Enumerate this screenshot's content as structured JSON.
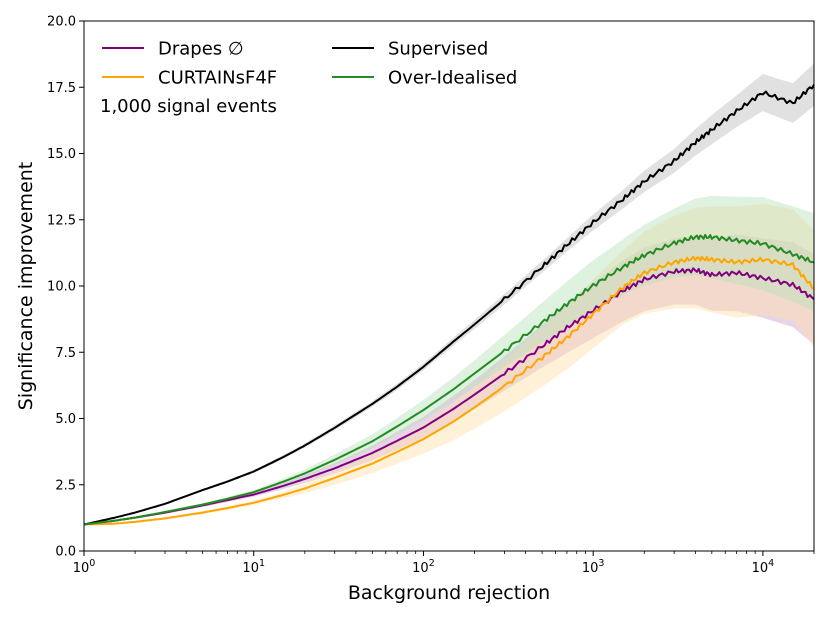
{
  "chart_data": {
    "type": "line",
    "title": "",
    "xlabel": "Background rejection",
    "ylabel": "Significance improvement",
    "xscale": "log",
    "xlim": [
      1,
      20000
    ],
    "ylim": [
      0,
      20
    ],
    "grid": false,
    "legend_location": "upper-left",
    "annotation": "1,000 signal events",
    "x_ticks": [
      {
        "value": 1,
        "base": "10",
        "exp": "0"
      },
      {
        "value": 10,
        "base": "10",
        "exp": "1"
      },
      {
        "value": 100,
        "base": "10",
        "exp": "2"
      },
      {
        "value": 1000,
        "base": "10",
        "exp": "3"
      },
      {
        "value": 10000,
        "base": "10",
        "exp": "4"
      }
    ],
    "y_ticks": [
      {
        "value": 0,
        "label": "0.0"
      },
      {
        "value": 2.5,
        "label": "2.5"
      },
      {
        "value": 5,
        "label": "5.0"
      },
      {
        "value": 7.5,
        "label": "7.5"
      },
      {
        "value": 10,
        "label": "10.0"
      },
      {
        "value": 12.5,
        "label": "12.5"
      },
      {
        "value": 15,
        "label": "15.0"
      },
      {
        "value": 17.5,
        "label": "17.5"
      },
      {
        "value": 20,
        "label": "20.0"
      }
    ],
    "series": [
      {
        "name": "Drapes ∅",
        "color": "#800080",
        "band_color": "#c9a0c9",
        "x": [
          1,
          1.5,
          2,
          3,
          5,
          7,
          10,
          15,
          20,
          30,
          50,
          70,
          100,
          150,
          200,
          300,
          500,
          700,
          1000,
          1500,
          2000,
          3000,
          4000,
          5000,
          7000,
          10000,
          15000,
          20000
        ],
        "y": [
          1.0,
          1.14,
          1.26,
          1.45,
          1.72,
          1.92,
          2.13,
          2.46,
          2.72,
          3.12,
          3.7,
          4.16,
          4.66,
          5.36,
          5.9,
          6.7,
          7.72,
          8.42,
          9.08,
          9.82,
          10.25,
          10.55,
          10.6,
          10.42,
          10.5,
          10.3,
          10.05,
          9.5
        ],
        "band": [
          0.02,
          0.03,
          0.04,
          0.05,
          0.06,
          0.07,
          0.08,
          0.12,
          0.15,
          0.2,
          0.28,
          0.34,
          0.4,
          0.5,
          0.55,
          0.65,
          0.8,
          0.95,
          1.05,
          1.15,
          1.2,
          1.25,
          1.3,
          1.35,
          1.45,
          1.5,
          1.6,
          1.7
        ]
      },
      {
        "name": "CURTAINsF4F",
        "color": "#ffa500",
        "band_color": "#ffe0a8",
        "x": [
          1,
          1.5,
          2,
          3,
          5,
          7,
          10,
          15,
          20,
          30,
          50,
          70,
          100,
          150,
          200,
          300,
          500,
          700,
          1000,
          1500,
          2000,
          3000,
          4000,
          5000,
          7000,
          10000,
          15000,
          20000
        ],
        "y": [
          1.0,
          1.03,
          1.1,
          1.23,
          1.45,
          1.62,
          1.82,
          2.12,
          2.36,
          2.76,
          3.3,
          3.74,
          4.22,
          4.88,
          5.42,
          6.22,
          7.3,
          8.05,
          8.95,
          9.95,
          10.5,
          10.9,
          11.05,
          11.0,
          10.9,
          11.0,
          10.8,
          9.9
        ],
        "band": [
          0.02,
          0.03,
          0.04,
          0.05,
          0.06,
          0.07,
          0.08,
          0.12,
          0.18,
          0.26,
          0.36,
          0.45,
          0.55,
          0.7,
          0.8,
          0.95,
          1.1,
          1.2,
          1.3,
          1.4,
          1.55,
          1.75,
          1.9,
          2.0,
          2.1,
          2.1,
          2.1,
          2.2
        ]
      },
      {
        "name": "Supervised",
        "color": "#000000",
        "band_color": "#bdbdbd",
        "x": [
          1,
          1.5,
          2,
          3,
          5,
          7,
          10,
          15,
          20,
          30,
          50,
          70,
          100,
          150,
          200,
          300,
          500,
          700,
          1000,
          1500,
          2000,
          3000,
          4000,
          5000,
          7000,
          10000,
          15000,
          20000
        ],
        "y": [
          1.0,
          1.25,
          1.45,
          1.78,
          2.3,
          2.62,
          3.0,
          3.55,
          3.98,
          4.65,
          5.55,
          6.2,
          6.95,
          7.9,
          8.55,
          9.5,
          10.72,
          11.55,
          12.4,
          13.28,
          13.95,
          14.72,
          15.42,
          15.9,
          16.6,
          17.3,
          16.9,
          17.6
        ],
        "band": [
          0.02,
          0.02,
          0.03,
          0.03,
          0.04,
          0.05,
          0.06,
          0.07,
          0.08,
          0.09,
          0.1,
          0.12,
          0.13,
          0.15,
          0.17,
          0.2,
          0.22,
          0.25,
          0.3,
          0.35,
          0.4,
          0.45,
          0.5,
          0.55,
          0.6,
          0.7,
          0.75,
          0.8
        ]
      },
      {
        "name": "Over-Idealised",
        "color": "#228b22",
        "band_color": "#b9e0b9",
        "x": [
          1,
          1.5,
          2,
          3,
          5,
          7,
          10,
          15,
          20,
          30,
          50,
          70,
          100,
          150,
          200,
          300,
          500,
          700,
          1000,
          1500,
          2000,
          3000,
          4000,
          5000,
          7000,
          10000,
          15000,
          20000
        ],
        "y": [
          1.0,
          1.14,
          1.26,
          1.47,
          1.75,
          1.97,
          2.22,
          2.62,
          2.93,
          3.44,
          4.14,
          4.7,
          5.32,
          6.1,
          6.7,
          7.55,
          8.62,
          9.32,
          10.02,
          10.72,
          11.16,
          11.62,
          11.85,
          11.85,
          11.72,
          11.6,
          11.2,
          10.9
        ],
        "band": [
          0.02,
          0.03,
          0.04,
          0.05,
          0.06,
          0.07,
          0.08,
          0.12,
          0.15,
          0.2,
          0.26,
          0.32,
          0.38,
          0.45,
          0.5,
          0.6,
          0.75,
          0.85,
          0.95,
          1.05,
          1.15,
          1.3,
          1.45,
          1.55,
          1.65,
          1.75,
          1.8,
          1.85
        ]
      }
    ]
  }
}
